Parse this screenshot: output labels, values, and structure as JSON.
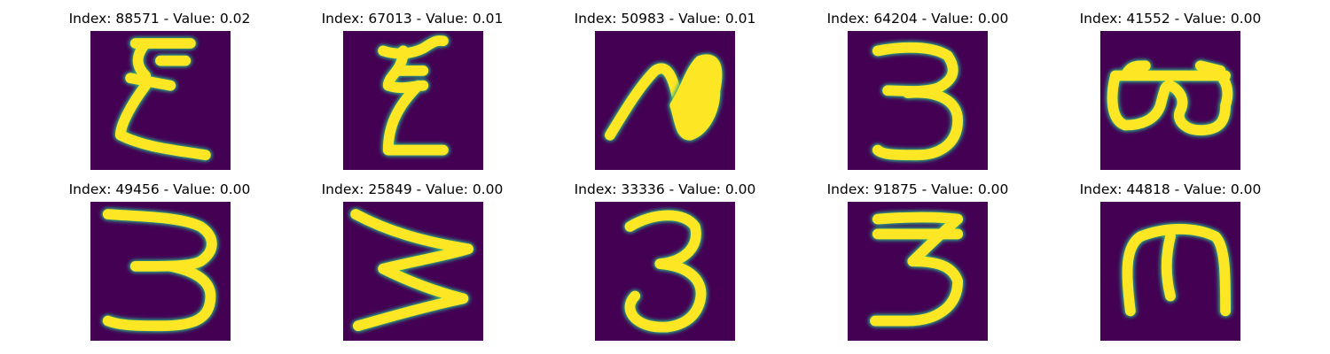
{
  "colors": {
    "background": "#440154",
    "stroke_core": "#fde725",
    "stroke_mid": "#5ec962",
    "stroke_edge": "#21918c",
    "stroke_outer": "#3b528b"
  },
  "tiles": [
    {
      "title": "Index: 88571 - Value: 0.02",
      "glyph": "sigma-like handwritten E"
    },
    {
      "title": "Index: 67013 - Value: 0.01",
      "glyph": "zigzag handwritten E"
    },
    {
      "title": "Index: 50983 - Value: 0.01",
      "glyph": "filled loop stroke"
    },
    {
      "title": "Index: 64204 - Value: 0.00",
      "glyph": "handwritten 3"
    },
    {
      "title": "Index: 41552 - Value: 0.00",
      "glyph": "rotated B"
    },
    {
      "title": "Index: 49456 - Value: 0.00",
      "glyph": "handwritten 3"
    },
    {
      "title": "Index: 25849 - Value: 0.00",
      "glyph": "wide zigzag 3"
    },
    {
      "title": "Index: 33336 - Value: 0.00",
      "glyph": "handwritten 3"
    },
    {
      "title": "Index: 91875 - Value: 0.00",
      "glyph": "handwritten 3"
    },
    {
      "title": "Index: 44818 - Value: 0.00",
      "glyph": "rotated m / E"
    }
  ]
}
